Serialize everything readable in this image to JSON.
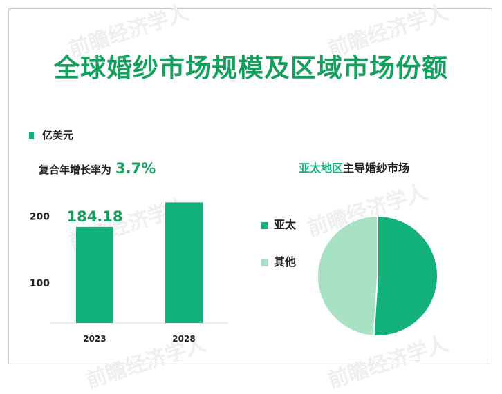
{
  "title": "全球婚纱市场规模及区域市场份额",
  "unit_legend": "亿美元",
  "cagr": {
    "label": "复合年增长率为",
    "value": "3.7%"
  },
  "watermark": "前瞻经济学人",
  "colors": {
    "accent": "#12b27a",
    "title": "#12a05c",
    "light": "#a8e2c3"
  },
  "chart_data": [
    {
      "type": "bar",
      "categories": [
        "2023",
        "2028"
      ],
      "values": [
        184.18,
        221
      ],
      "data_labels": [
        "184.18",
        ""
      ],
      "yticks": [
        "100",
        "200"
      ],
      "ytick_values": [
        100,
        200
      ],
      "ylim": [
        40,
        240
      ],
      "legend": "亿美元"
    },
    {
      "type": "pie",
      "title": "亚太地区主导婚纱市场",
      "title_highlight": "亚太地区",
      "title_rest": "主导婚纱市场",
      "labels": [
        "亚太",
        "其他"
      ],
      "values": [
        51,
        49
      ],
      "colors": [
        "#12b27a",
        "#a8e2c3"
      ]
    }
  ]
}
